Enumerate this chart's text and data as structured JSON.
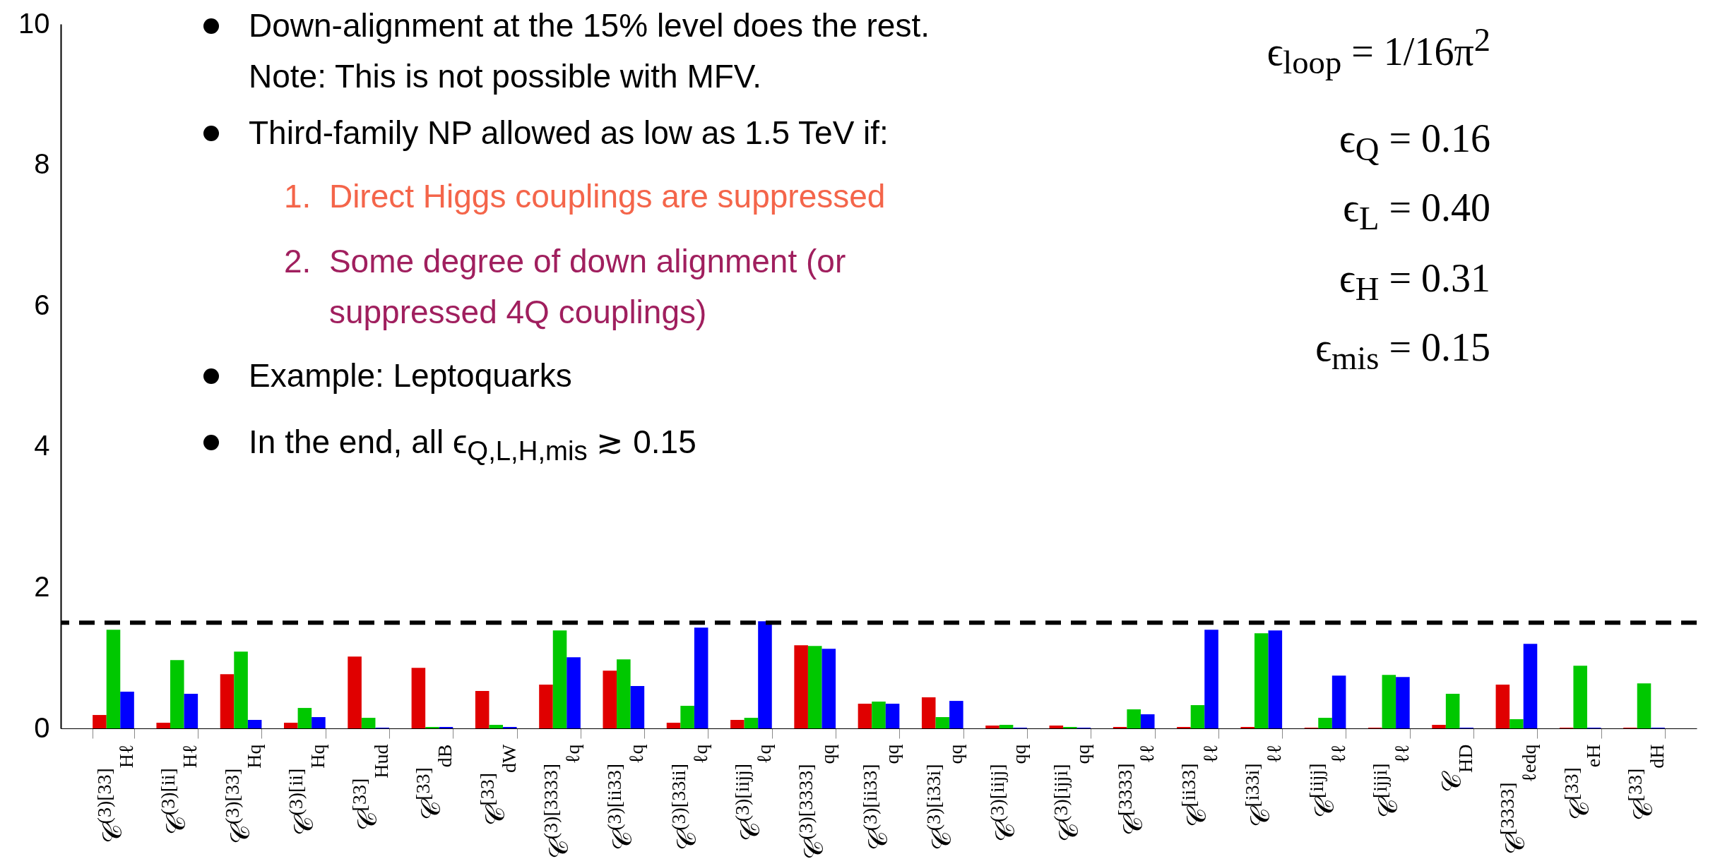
{
  "chart_data": {
    "type": "bar",
    "categories": [
      "𝒞$^{(3)[33]}$$_{Hℓ}$",
      "𝒞$^{(3)[ii]}$$_{Hℓ}$",
      "𝒞$^{(3)[33]}$$_{Hq}$",
      "𝒞$^{(3)[ii]}$$_{Hq}$",
      "𝒞$^{[33]}$$_{Hud}$",
      "𝒞$^{[33]}$$_{dB}$",
      "𝒞$^{[33]}$$_{dW}$",
      "𝒞$^{(3)[3333]}$$_{ℓq}$",
      "𝒞$^{(3)[ii33]}$$_{ℓq}$",
      "𝒞$^{(3)[33ii]}$$_{ℓq}$",
      "𝒞$^{(3)[iijj]}$$_{ℓq}$",
      "𝒞$^{(3)[3333]}$$_{qq}$",
      "𝒞$^{(3)[ii33]}$$_{qq}$",
      "𝒞$^{(3)[i33i]}$$_{qq}$",
      "𝒞$^{(3)[iijj]}$$_{qq}$",
      "𝒞$^{(3)[ijji]}$$_{qq}$",
      "𝒞$^{[3333]}$$_{ℓℓ}$",
      "𝒞$^{[ii33]}$$_{ℓℓ}$",
      "𝒞$^{[i33i]}$$_{ℓℓ}$",
      "𝒞$^{[iijj]}$$_{ℓℓ}$",
      "𝒞$^{[ijji]}$$_{ℓℓ}$",
      "𝒞$_{HD}$",
      "𝒞$^{[3333]}$$_{ℓedq}$",
      "𝒞$^{[33]}$$_{eH}$",
      "𝒞$^{[33]}$$_{dH}$"
    ],
    "series": [
      {
        "color": "#e00000",
        "values": [
          0.19,
          0.08,
          0.77,
          0.08,
          1.02,
          0.86,
          0.53,
          0.62,
          0.82,
          0.08,
          0.12,
          1.18,
          0.35,
          0.44,
          0.04,
          0.04,
          0.02,
          0.02,
          0.02,
          0.01,
          0.01,
          0.05,
          0.62,
          0.01,
          0.01
        ]
      },
      {
        "color": "#00c800",
        "values": [
          1.4,
          0.97,
          1.09,
          0.29,
          0.15,
          0.02,
          0.05,
          1.39,
          0.98,
          0.32,
          0.15,
          1.17,
          0.38,
          0.16,
          0.05,
          0.02,
          0.27,
          0.33,
          1.35,
          0.15,
          0.76,
          0.49,
          0.13,
          0.89,
          0.64
        ]
      },
      {
        "color": "#0000ff",
        "values": [
          0.52,
          0.49,
          0.12,
          0.16,
          0.01,
          0.02,
          0.02,
          1.01,
          0.6,
          1.43,
          1.52,
          1.13,
          0.35,
          0.39,
          0.01,
          0.01,
          0.2,
          1.4,
          1.39,
          0.75,
          0.73,
          0.01,
          1.2,
          0.01,
          0.01
        ]
      }
    ],
    "ylim": [
      0,
      10
    ],
    "yticks": [
      0,
      2,
      4,
      6,
      8,
      10
    ],
    "grid": false,
    "legend": false,
    "ref_lines": [
      {
        "axis": "y",
        "value": 1.5,
        "color": "#000000",
        "line_style": "dashed"
      }
    ],
    "annotations": [
      "Down-alignment at the 15% level does the rest.\nNote: This is not possible with MFV.",
      "Third-family NP allowed as low as 1.5 TeV if:",
      "1.  Direct Higgs couplings are suppressed",
      "2.  Some degree of down alignment (or\n     suppressed 4Q couplings)",
      "Example: Leptoquarks",
      "In the end, all ϵ$_{Q,L,H,mis}$ ≳ 0.15",
      "ϵ$_{loop}$ = 1/16π$^{2}$",
      "ϵ$_{Q}$ = 0.16",
      "ϵ$_{L}$ = 0.40",
      "ϵ$_{H}$ = 0.31",
      "ϵ$_{mis}$ = 0.15"
    ]
  }
}
